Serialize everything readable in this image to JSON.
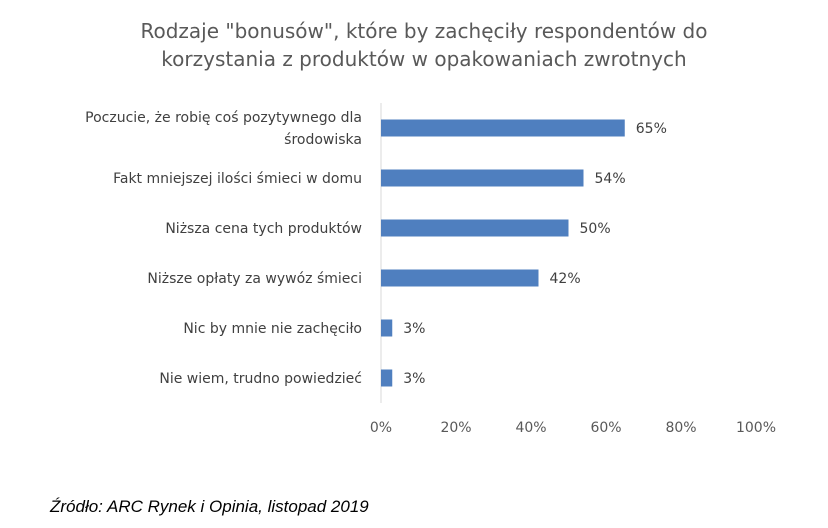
{
  "chart_data": {
    "type": "bar",
    "orientation": "horizontal",
    "title_lines": [
      "Rodzaje \"bonusów\", które by zachęciły respondentów do",
      "korzystania z produktów w opakowaniach zwrotnych"
    ],
    "categories": [
      [
        "Poczucie, że robię coś pozytywnego dla",
        "środowiska"
      ],
      [
        "Fakt mniejszej ilości śmieci w domu"
      ],
      [
        "Niższa cena tych produktów"
      ],
      [
        "Niższe opłaty za wywóz śmieci"
      ],
      [
        "Nic by mnie nie zachęciło"
      ],
      [
        "Nie wiem, trudno powiedzieć"
      ]
    ],
    "values": [
      65,
      54,
      50,
      42,
      3,
      3
    ],
    "data_labels": [
      "65%",
      "54%",
      "50%",
      "42%",
      "3%",
      "3%"
    ],
    "xlim": [
      0,
      100
    ],
    "xticks": [
      0,
      20,
      40,
      60,
      80,
      100
    ],
    "xtick_labels": [
      "0%",
      "20%",
      "40%",
      "60%",
      "80%",
      "100%"
    ],
    "bar_color": "#4f7fbf",
    "grid": false
  },
  "source": "Źródło: ARC Rynek i Opinia, listopad 2019"
}
